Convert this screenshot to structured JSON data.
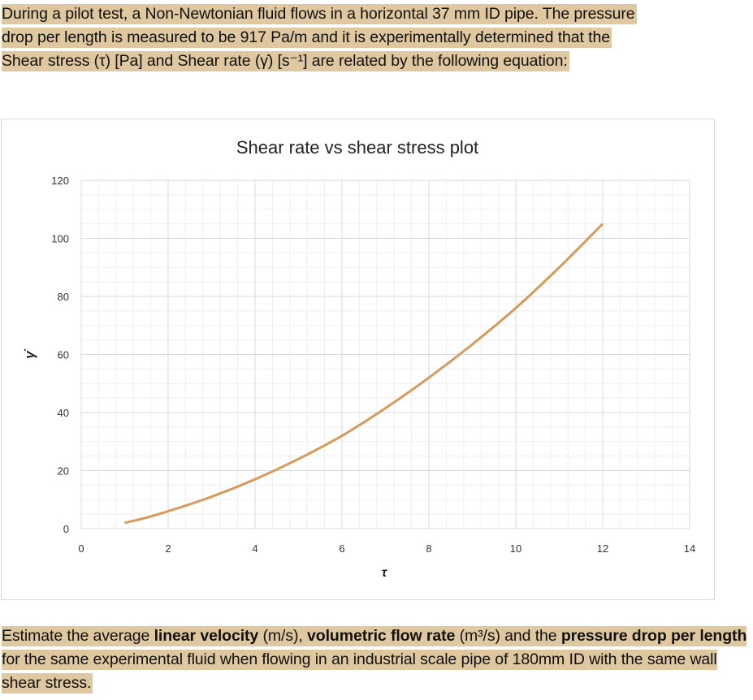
{
  "intro": {
    "lines": [
      "During a pilot test, a Non-Newtonian fluid flows in a horizontal 37 mm ID pipe. The pressure",
      "drop per length is measured to be 917 Pa/m and it is experimentally determined that the",
      "Shear stress (τ) [Pa] and Shear rate (γ̇) [s⁻¹] are related by the following equation:"
    ]
  },
  "question": {
    "parts": [
      "Estimate the average ",
      "linear velocity",
      " (m/s), ",
      "volumetric flow rate",
      " (m³/s) and the ",
      "pressure drop per length",
      " for the same experimental fluid when flowing in an industrial scale pipe of 180mm ID with the same wall shear stress."
    ]
  },
  "chart_data": {
    "type": "line",
    "title": "Shear rate vs shear stress plot",
    "xlabel": "τ",
    "ylabel": "γ̇",
    "xlim": [
      0,
      14
    ],
    "ylim": [
      0,
      120
    ],
    "xticks": [
      "0",
      "2",
      "4",
      "6",
      "8",
      "10",
      "12",
      "14"
    ],
    "yticks": [
      "0",
      "20",
      "40",
      "60",
      "80",
      "100",
      "120"
    ],
    "grid": true,
    "minor_grid": true,
    "color": "#d89a5a",
    "series": [
      {
        "x": [
          1,
          1.5,
          2,
          3,
          4,
          5,
          6,
          7,
          8,
          9,
          10,
          11,
          12
        ],
        "y": [
          2,
          3.8,
          6,
          11,
          17,
          24,
          32,
          41.5,
          52,
          63.5,
          76,
          90,
          105
        ]
      }
    ]
  }
}
